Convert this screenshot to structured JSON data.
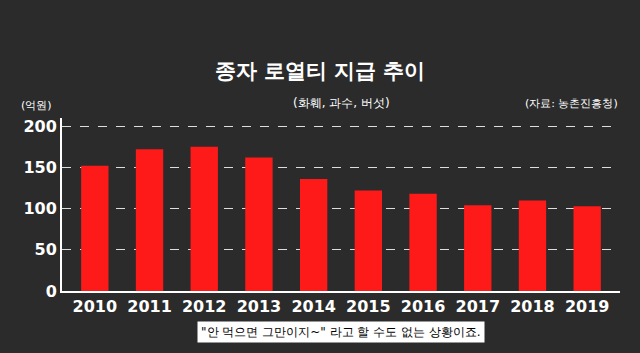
{
  "chart_data": {
    "type": "bar",
    "title": "종자 로열티 지급 추이",
    "subtitle": "(화훼, 과수, 버섯)",
    "ylabel": "(억원)",
    "annotations": [
      "(자료: 농촌진흥청)",
      "\"안 먹으면 그만이지~\" 라고 할 수도 없는 상황이죠."
    ],
    "categories": [
      "2010",
      "2011",
      "2012",
      "2013",
      "2014",
      "2015",
      "2016",
      "2017",
      "2018",
      "2019"
    ],
    "values": [
      152,
      172,
      175,
      162,
      136,
      122,
      118,
      104,
      110,
      103
    ],
    "color": "#ff1a1a",
    "ylim": [
      0,
      210
    ],
    "yticks": [
      0,
      50,
      100,
      150,
      200
    ],
    "grid": true
  }
}
